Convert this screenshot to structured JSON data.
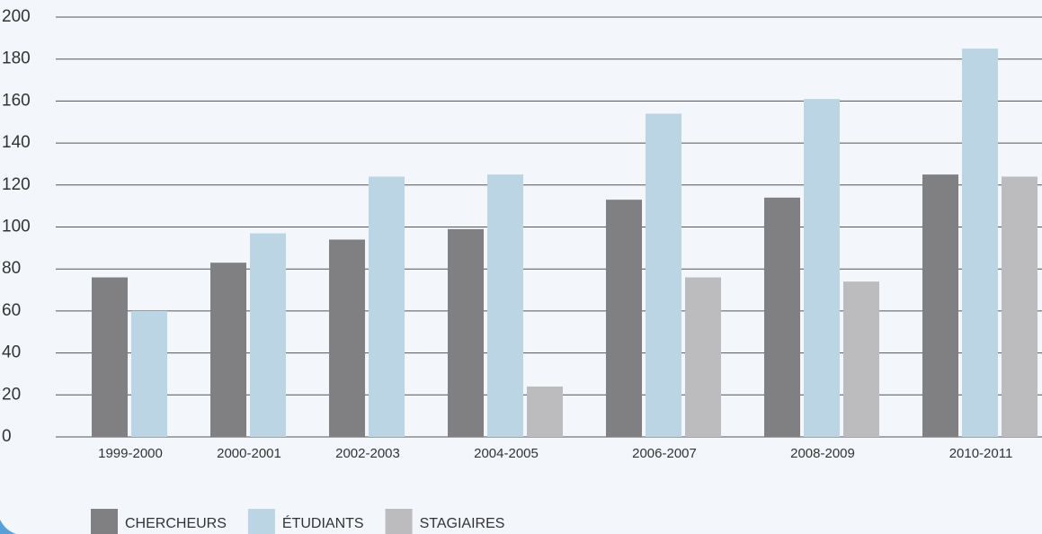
{
  "chart_data": {
    "type": "bar",
    "categories": [
      "1999-2000",
      "2000-2001",
      "2002-2003",
      "2004-2005",
      "2006-2007",
      "2008-2009",
      "2010-2011"
    ],
    "series": [
      {
        "name": "CHERCHEURS",
        "color": "#808083",
        "values": [
          76,
          83,
          94,
          99,
          113,
          114,
          125
        ]
      },
      {
        "name": "ÉTUDIANTS",
        "color": "#bcd5e5",
        "values": [
          60,
          97,
          124,
          125,
          154,
          161,
          185
        ]
      },
      {
        "name": "STAGIAIRES",
        "color": "#bcbcbe",
        "values": [
          null,
          null,
          null,
          24,
          76,
          74,
          124
        ]
      }
    ],
    "ylim": [
      0,
      200
    ],
    "yticks": [
      0,
      20,
      40,
      60,
      80,
      100,
      120,
      140,
      160,
      180,
      200
    ],
    "grid": true
  }
}
